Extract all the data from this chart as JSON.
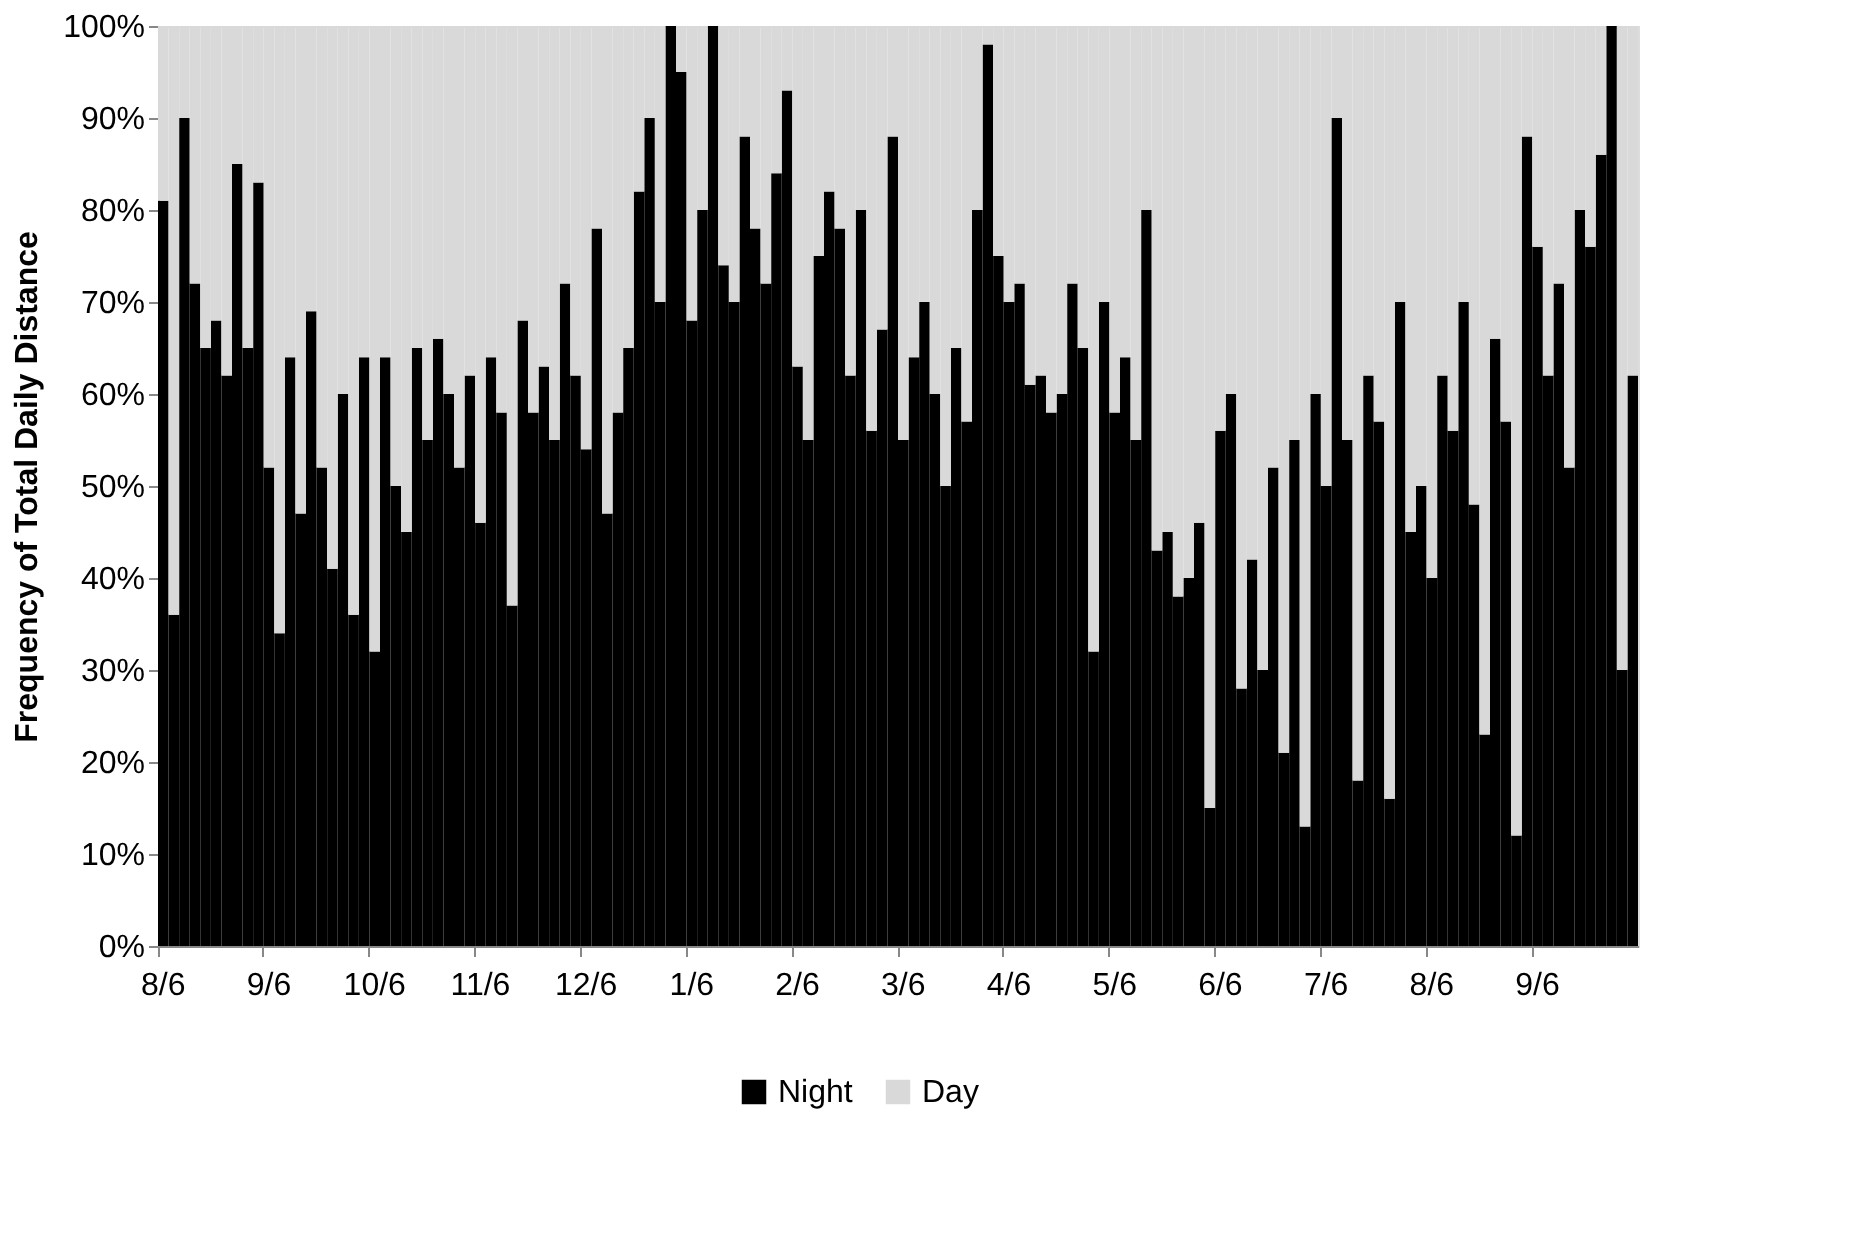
{
  "chart_data": {
    "type": "bar",
    "stacked": true,
    "ylabel": "Frequency of Total Daily Distance",
    "categories": [
      "8/6",
      null,
      null,
      null,
      null,
      null,
      null,
      null,
      null,
      null,
      "9/6",
      null,
      null,
      null,
      null,
      null,
      null,
      null,
      null,
      null,
      "10/6",
      null,
      null,
      null,
      null,
      null,
      null,
      null,
      null,
      null,
      "11/6",
      null,
      null,
      null,
      null,
      null,
      null,
      null,
      null,
      null,
      "12/6",
      null,
      null,
      null,
      null,
      null,
      null,
      null,
      null,
      null,
      "1/6",
      null,
      null,
      null,
      null,
      null,
      null,
      null,
      null,
      null,
      "2/6",
      null,
      null,
      null,
      null,
      null,
      null,
      null,
      null,
      null,
      "3/6",
      null,
      null,
      null,
      null,
      null,
      null,
      null,
      null,
      null,
      "4/6",
      null,
      null,
      null,
      null,
      null,
      null,
      null,
      null,
      null,
      "5/6",
      null,
      null,
      null,
      null,
      null,
      null,
      null,
      null,
      null,
      "6/6",
      null,
      null,
      null,
      null,
      null,
      null,
      null,
      null,
      null,
      "7/6",
      null,
      null,
      null,
      null,
      null,
      null,
      null,
      null,
      null,
      "8/6",
      null,
      null,
      null,
      null,
      null,
      null,
      null,
      null,
      null,
      "9/6",
      null,
      null,
      null,
      null,
      null,
      null,
      null,
      null,
      null
    ],
    "series": [
      {
        "name": "Night",
        "color": "#000000",
        "values": [
          81,
          36,
          90,
          72,
          65,
          68,
          62,
          85,
          65,
          83,
          52,
          34,
          64,
          47,
          69,
          52,
          41,
          60,
          36,
          64,
          32,
          64,
          50,
          45,
          65,
          55,
          66,
          60,
          52,
          62,
          46,
          64,
          58,
          37,
          68,
          58,
          63,
          55,
          72,
          62,
          54,
          78,
          47,
          58,
          65,
          82,
          90,
          70,
          100,
          95,
          68,
          80,
          100,
          74,
          70,
          88,
          78,
          72,
          84,
          93,
          63,
          55,
          75,
          82,
          78,
          62,
          80,
          56,
          67,
          88,
          55,
          64,
          70,
          60,
          50,
          65,
          57,
          80,
          98,
          75,
          70,
          72,
          61,
          62,
          58,
          60,
          72,
          65,
          32,
          70,
          58,
          64,
          55,
          80,
          43,
          45,
          38,
          40,
          46,
          15,
          56,
          60,
          28,
          42,
          30,
          52,
          21,
          55,
          13,
          60,
          50,
          90,
          55,
          18,
          62,
          57,
          16,
          70,
          45,
          50,
          40,
          62,
          56,
          70,
          48,
          23,
          66,
          57,
          12,
          88,
          76,
          62,
          72,
          52,
          80,
          76,
          86,
          100,
          30,
          62
        ]
      },
      {
        "name": "Day",
        "color": "#d9d9d9",
        "values": [
          19,
          64,
          10,
          28,
          35,
          32,
          38,
          15,
          35,
          17,
          48,
          66,
          36,
          53,
          31,
          48,
          59,
          40,
          64,
          36,
          68,
          36,
          50,
          55,
          35,
          45,
          34,
          40,
          48,
          38,
          54,
          36,
          42,
          63,
          32,
          42,
          37,
          45,
          28,
          38,
          46,
          22,
          53,
          42,
          35,
          18,
          10,
          30,
          0,
          5,
          32,
          20,
          0,
          26,
          30,
          12,
          22,
          28,
          16,
          7,
          37,
          45,
          25,
          18,
          22,
          38,
          20,
          44,
          33,
          12,
          45,
          36,
          30,
          40,
          50,
          35,
          43,
          20,
          2,
          25,
          30,
          28,
          39,
          38,
          42,
          40,
          28,
          35,
          68,
          30,
          42,
          36,
          45,
          20,
          57,
          55,
          62,
          60,
          54,
          85,
          44,
          40,
          72,
          58,
          70,
          48,
          79,
          45,
          87,
          40,
          50,
          10,
          45,
          82,
          38,
          43,
          84,
          30,
          55,
          50,
          60,
          38,
          44,
          30,
          52,
          77,
          34,
          43,
          88,
          12,
          24,
          38,
          28,
          48,
          20,
          24,
          14,
          0,
          70,
          38
        ]
      }
    ],
    "ylim": [
      0,
      100
    ],
    "yticks": [
      {
        "value": 0,
        "label": "0%"
      },
      {
        "value": 10,
        "label": "10%"
      },
      {
        "value": 20,
        "label": "20%"
      },
      {
        "value": 30,
        "label": "30%"
      },
      {
        "value": 40,
        "label": "40%"
      },
      {
        "value": 50,
        "label": "50%"
      },
      {
        "value": 60,
        "label": "60%"
      },
      {
        "value": 70,
        "label": "70%"
      },
      {
        "value": 80,
        "label": "80%"
      },
      {
        "value": 90,
        "label": "90%"
      },
      {
        "value": 100,
        "label": "100%"
      }
    ],
    "grid": false,
    "legend": "bottom"
  }
}
